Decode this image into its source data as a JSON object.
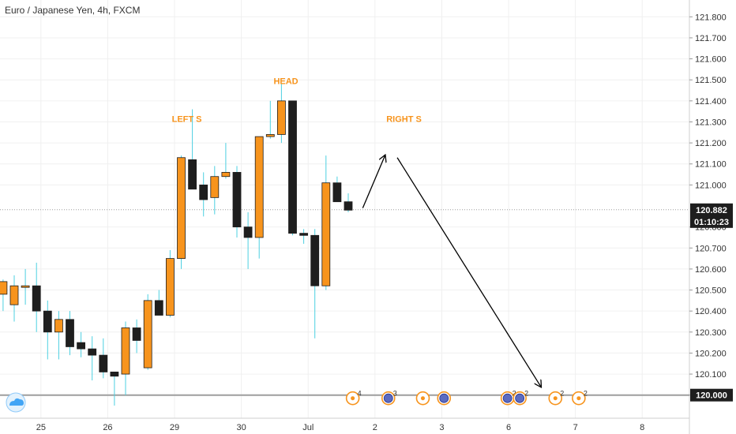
{
  "header": {
    "symbol_title": "Euro / Japanese Yen, 4h, FXCM"
  },
  "colors": {
    "bull": "#f7941d",
    "bear": "#1e1e1e",
    "grid": "#f0f0f0",
    "wick": "#4dd0e1",
    "annotation": "#f7941d",
    "event": "#f7941d",
    "tag_bg": "#1e1e1e"
  },
  "chart_data": {
    "type": "candlestick",
    "title": "Euro / Japanese Yen, 4h, FXCM",
    "y_ticks": [
      120.0,
      120.1,
      120.2,
      120.3,
      120.4,
      120.5,
      120.6,
      120.7,
      120.8,
      121.0,
      121.1,
      121.2,
      121.3,
      121.4,
      121.5,
      121.6,
      121.7,
      121.8
    ],
    "y_tick_labels": [
      "120.000",
      "120.100",
      "120.200",
      "120.300",
      "120.400",
      "120.500",
      "120.600",
      "120.700",
      "120.800",
      "121.000",
      "121.100",
      "121.200",
      "121.300",
      "121.400",
      "121.500",
      "121.600",
      "121.700",
      "121.800"
    ],
    "x_tick_labels": [
      "25",
      "26",
      "29",
      "30",
      "Jul",
      "2",
      "3",
      "6",
      "7",
      "8"
    ],
    "x_tick_index": [
      2.4,
      8.4,
      14.4,
      20.4,
      26.4,
      32.4,
      38.4,
      44.4,
      50.4,
      56.4
    ],
    "ylim": [
      119.89,
      121.88
    ],
    "candles": [
      {
        "i": -1,
        "o": 120.48,
        "h": 120.55,
        "l": 120.4,
        "c": 120.54
      },
      {
        "i": 0,
        "o": 120.43,
        "h": 120.57,
        "l": 120.35,
        "c": 120.52
      },
      {
        "i": 1,
        "o": 120.52,
        "h": 120.6,
        "l": 120.43,
        "c": 120.52
      },
      {
        "i": 2,
        "o": 120.52,
        "h": 120.63,
        "l": 120.3,
        "c": 120.4
      },
      {
        "i": 3,
        "o": 120.4,
        "h": 120.45,
        "l": 120.17,
        "c": 120.3
      },
      {
        "i": 4,
        "o": 120.3,
        "h": 120.4,
        "l": 120.17,
        "c": 120.36
      },
      {
        "i": 5,
        "o": 120.36,
        "h": 120.4,
        "l": 120.19,
        "c": 120.23
      },
      {
        "i": 6,
        "o": 120.25,
        "h": 120.3,
        "l": 120.18,
        "c": 120.22
      },
      {
        "i": 7,
        "o": 120.22,
        "h": 120.28,
        "l": 120.07,
        "c": 120.19
      },
      {
        "i": 8,
        "o": 120.19,
        "h": 120.27,
        "l": 120.08,
        "c": 120.11
      },
      {
        "i": 9,
        "o": 120.11,
        "h": 120.11,
        "l": 119.95,
        "c": 120.09
      },
      {
        "i": 10,
        "o": 120.1,
        "h": 120.35,
        "l": 120.0,
        "c": 120.32
      },
      {
        "i": 11,
        "o": 120.32,
        "h": 120.36,
        "l": 120.2,
        "c": 120.26
      },
      {
        "i": 12,
        "o": 120.13,
        "h": 120.48,
        "l": 120.12,
        "c": 120.45
      },
      {
        "i": 13,
        "o": 120.45,
        "h": 120.5,
        "l": 120.38,
        "c": 120.38
      },
      {
        "i": 14,
        "o": 120.38,
        "h": 120.69,
        "l": 120.37,
        "c": 120.65
      },
      {
        "i": 15,
        "o": 120.65,
        "h": 121.14,
        "l": 120.6,
        "c": 121.13
      },
      {
        "i": 16,
        "o": 121.12,
        "h": 121.36,
        "l": 120.99,
        "c": 120.98
      },
      {
        "i": 17,
        "o": 121.0,
        "h": 121.06,
        "l": 120.85,
        "c": 120.93
      },
      {
        "i": 18,
        "o": 120.94,
        "h": 121.09,
        "l": 120.86,
        "c": 121.04
      },
      {
        "i": 19,
        "o": 121.04,
        "h": 121.2,
        "l": 121.03,
        "c": 121.06
      },
      {
        "i": 20,
        "o": 121.06,
        "h": 121.09,
        "l": 120.75,
        "c": 120.8
      },
      {
        "i": 21,
        "o": 120.8,
        "h": 120.87,
        "l": 120.6,
        "c": 120.75
      },
      {
        "i": 22,
        "o": 120.75,
        "h": 121.23,
        "l": 120.65,
        "c": 121.23
      },
      {
        "i": 23,
        "o": 121.23,
        "h": 121.4,
        "l": 121.22,
        "c": 121.24
      },
      {
        "i": 24,
        "o": 121.24,
        "h": 121.48,
        "l": 121.2,
        "c": 121.4
      },
      {
        "i": 25,
        "o": 121.4,
        "h": 121.4,
        "l": 120.76,
        "c": 120.77
      },
      {
        "i": 26,
        "o": 120.77,
        "h": 120.79,
        "l": 120.72,
        "c": 120.76
      },
      {
        "i": 27,
        "o": 120.76,
        "h": 120.79,
        "l": 120.27,
        "c": 120.52
      },
      {
        "i": 28,
        "o": 120.52,
        "h": 121.14,
        "l": 120.5,
        "c": 121.01
      },
      {
        "i": 29,
        "o": 121.01,
        "h": 121.04,
        "l": 120.92,
        "c": 120.92
      },
      {
        "i": 30,
        "o": 120.92,
        "h": 120.96,
        "l": 120.87,
        "c": 120.88
      }
    ],
    "current_price": 120.882,
    "current_price_label": "120.882",
    "countdown": "01:10:23",
    "level_price": 120.0,
    "level_label": "120.000",
    "annotations": [
      {
        "text": "LEFT S",
        "i": 15.5,
        "y": 121.3
      },
      {
        "text": "HEAD",
        "i": 24.4,
        "y": 121.48
      },
      {
        "text": "RIGHT S",
        "i": 35.0,
        "y": 121.3
      }
    ],
    "projection_arrows": [
      {
        "from_i": 31.3,
        "from_y": 120.89,
        "to_i": 33.3,
        "to_y": 121.14
      },
      {
        "from_i": 34.4,
        "from_y": 121.13,
        "to_i": 47.3,
        "to_y": 120.04
      }
    ],
    "events": [
      {
        "i": 30.4,
        "count": "4",
        "kind": "dot"
      },
      {
        "i": 33.6,
        "count": "3",
        "kind": "globe"
      },
      {
        "i": 36.7,
        "count": "",
        "kind": "dot"
      },
      {
        "i": 38.6,
        "count": "",
        "kind": "globe"
      },
      {
        "i": 44.3,
        "count": "2",
        "kind": "globe"
      },
      {
        "i": 45.4,
        "count": "2",
        "kind": "globe"
      },
      {
        "i": 48.6,
        "count": "2",
        "kind": "dot"
      },
      {
        "i": 50.7,
        "count": "2",
        "kind": "dot"
      }
    ]
  }
}
